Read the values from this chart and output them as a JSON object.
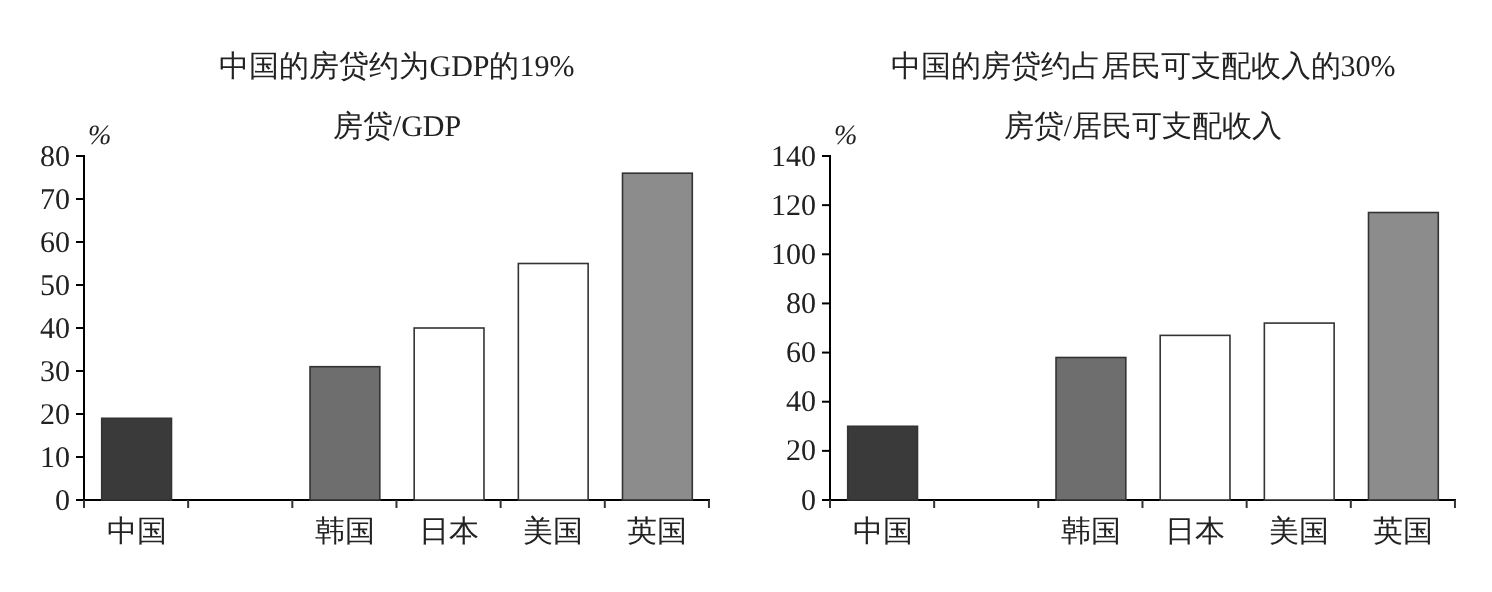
{
  "chart_data": [
    {
      "type": "bar",
      "title": "中国的房贷约为GDP的19%",
      "subtitle": "房贷/GDP",
      "ylabel": "%",
      "categories": [
        "中国",
        null,
        "韩国",
        "日本",
        "美国",
        "英国"
      ],
      "values": [
        19,
        null,
        31,
        40,
        55,
        76
      ],
      "colors": [
        "#3a3a3a",
        null,
        "#6e6e6e",
        "#ffffff",
        "#ffffff",
        "#8c8c8c"
      ],
      "ylim": [
        0,
        80
      ],
      "yticks": [
        0,
        10,
        20,
        30,
        40,
        50,
        60,
        70,
        80
      ],
      "grid": false
    },
    {
      "type": "bar",
      "title": "中国的房贷约占居民可支配收入的30%",
      "subtitle": "房贷/居民可支配收入",
      "ylabel": "%",
      "categories": [
        "中国",
        null,
        "韩国",
        "日本",
        "美国",
        "英国"
      ],
      "values": [
        30,
        null,
        58,
        67,
        72,
        117
      ],
      "colors": [
        "#3a3a3a",
        null,
        "#6e6e6e",
        "#ffffff",
        "#ffffff",
        "#8c8c8c"
      ],
      "ylim": [
        0,
        140
      ],
      "yticks": [
        0,
        20,
        40,
        60,
        80,
        100,
        120,
        140
      ],
      "grid": false
    }
  ]
}
